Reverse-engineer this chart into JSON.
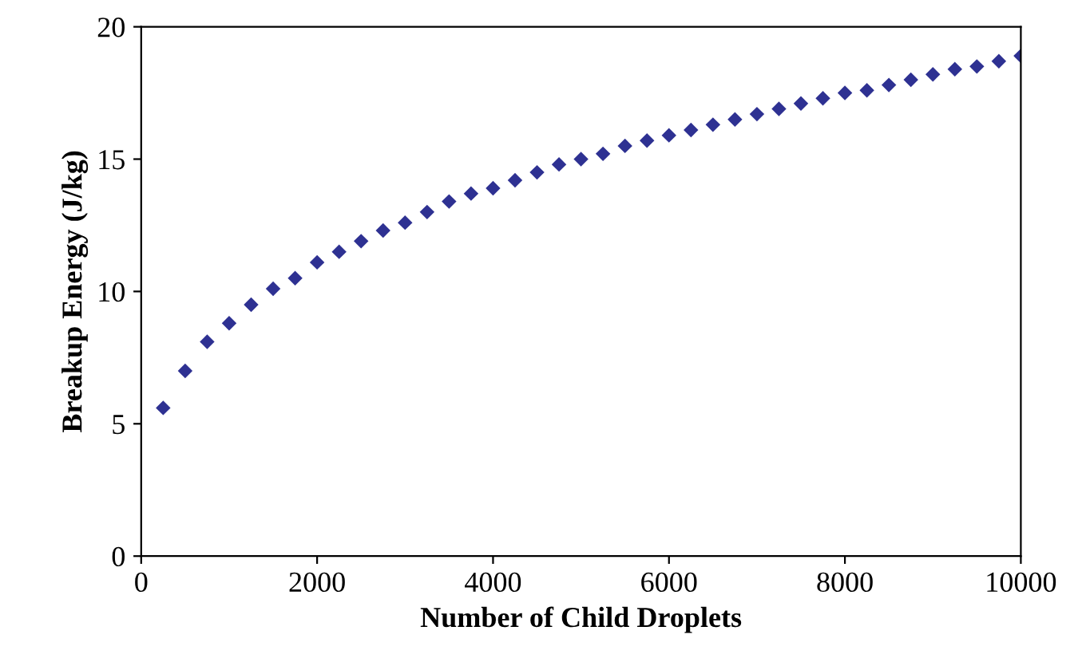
{
  "chart_data": {
    "type": "scatter",
    "xlabel": "Number of Child Droplets",
    "ylabel": "Breakup Energy (J/kg)",
    "x": [
      250,
      500,
      750,
      1000,
      1250,
      1500,
      1750,
      2000,
      2250,
      2500,
      2750,
      3000,
      3250,
      3500,
      3750,
      4000,
      4250,
      4500,
      4750,
      5000,
      5250,
      5500,
      5750,
      6000,
      6250,
      6500,
      6750,
      7000,
      7250,
      7500,
      7750,
      8000,
      8250,
      8500,
      8750,
      9000,
      9250,
      9500,
      9750,
      10000
    ],
    "series": [
      {
        "color": "#2e3192",
        "values": [
          5.6,
          7.0,
          8.1,
          8.8,
          9.5,
          10.1,
          10.5,
          11.1,
          11.5,
          11.9,
          12.3,
          12.6,
          13.0,
          13.4,
          13.7,
          13.9,
          14.2,
          14.5,
          14.8,
          15.0,
          15.2,
          15.5,
          15.7,
          15.9,
          16.1,
          16.3,
          16.5,
          16.7,
          16.9,
          17.1,
          17.3,
          17.5,
          17.6,
          17.8,
          18.0,
          18.2,
          18.4,
          18.5,
          18.7,
          18.9
        ]
      }
    ],
    "xlim": [
      0,
      10000
    ],
    "xticks": [
      0,
      2000,
      4000,
      6000,
      8000,
      10000
    ],
    "ylim": [
      0,
      20
    ],
    "yticks": [
      0,
      5,
      10,
      15,
      20
    ],
    "marker": "diamond",
    "grid": false,
    "legend": false
  }
}
